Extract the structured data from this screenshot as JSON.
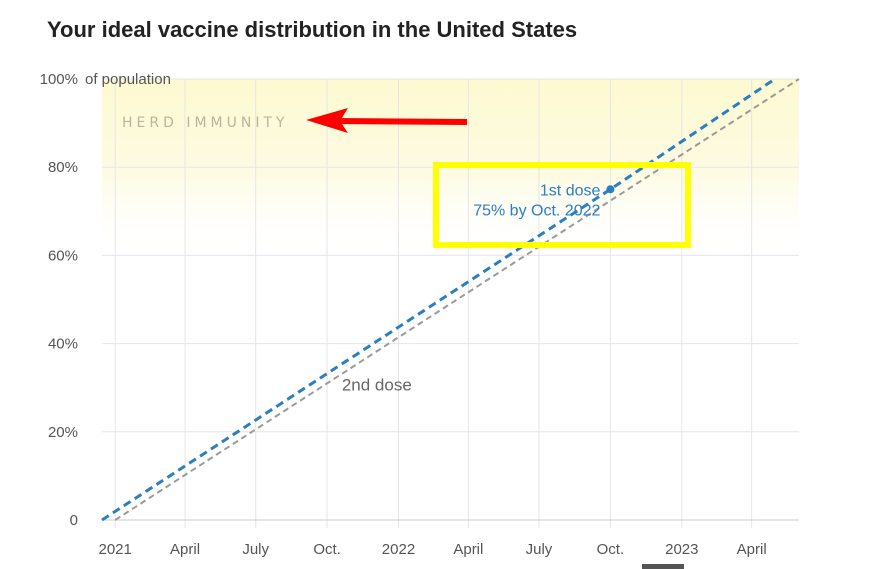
{
  "title": "Your ideal vaccine distribution in the United States",
  "colors": {
    "first_dose": "#2b7fc1",
    "second_dose": "#9a9a9a",
    "herd_band": "#fdf9d4",
    "highlight_box": "#ffff00",
    "arrow": "#ff0000"
  },
  "chart_data": {
    "type": "line",
    "title": "Your ideal vaccine distribution in the United States",
    "xlabel": "",
    "ylabel": "of population",
    "x_axis": {
      "type": "date",
      "range": [
        "2020-12-15",
        "2023-06-01"
      ],
      "ticks": [
        {
          "date": "2021-01-01",
          "label": "2021"
        },
        {
          "date": "2021-04-01",
          "label": "April"
        },
        {
          "date": "2021-07-01",
          "label": "July"
        },
        {
          "date": "2021-10-01",
          "label": "Oct."
        },
        {
          "date": "2022-01-01",
          "label": "2022"
        },
        {
          "date": "2022-04-01",
          "label": "April"
        },
        {
          "date": "2022-07-01",
          "label": "July"
        },
        {
          "date": "2022-10-01",
          "label": "Oct."
        },
        {
          "date": "2023-01-01",
          "label": "2023"
        },
        {
          "date": "2023-04-01",
          "label": "April"
        }
      ]
    },
    "y_axis": {
      "range": [
        0,
        100
      ],
      "ticks": [
        {
          "value": 0,
          "label": "0"
        },
        {
          "value": 20,
          "label": "20%"
        },
        {
          "value": 40,
          "label": "40%"
        },
        {
          "value": 60,
          "label": "60%"
        },
        {
          "value": 80,
          "label": "80%"
        },
        {
          "value": 100,
          "label": "100%"
        }
      ],
      "unit_suffix": "of population"
    },
    "grid": true,
    "series": [
      {
        "name": "1st dose",
        "style": "dashed",
        "points": [
          {
            "date": "2020-12-15",
            "value": 0
          },
          {
            "date": "2022-10-01",
            "value": 75
          },
          {
            "date": "2023-05-01",
            "value": 100
          }
        ]
      },
      {
        "name": "2nd dose",
        "style": "dashed",
        "points": [
          {
            "date": "2021-01-01",
            "value": 0
          },
          {
            "date": "2023-06-01",
            "value": 100
          }
        ]
      }
    ],
    "bands": [
      {
        "label": "HERD IMMUNITY",
        "from": 60,
        "to": 100
      }
    ],
    "annotations": [
      {
        "id": "first_dose_label",
        "text": "1st dose",
        "date": "2022-10-01",
        "value": 75
      },
      {
        "id": "first_dose_value",
        "text": "75% by Oct. 2022",
        "date": "2022-10-01",
        "value": 75
      },
      {
        "id": "second_dose_label",
        "text": "2nd dose",
        "date": "2021-10-20",
        "value": 30
      }
    ]
  }
}
